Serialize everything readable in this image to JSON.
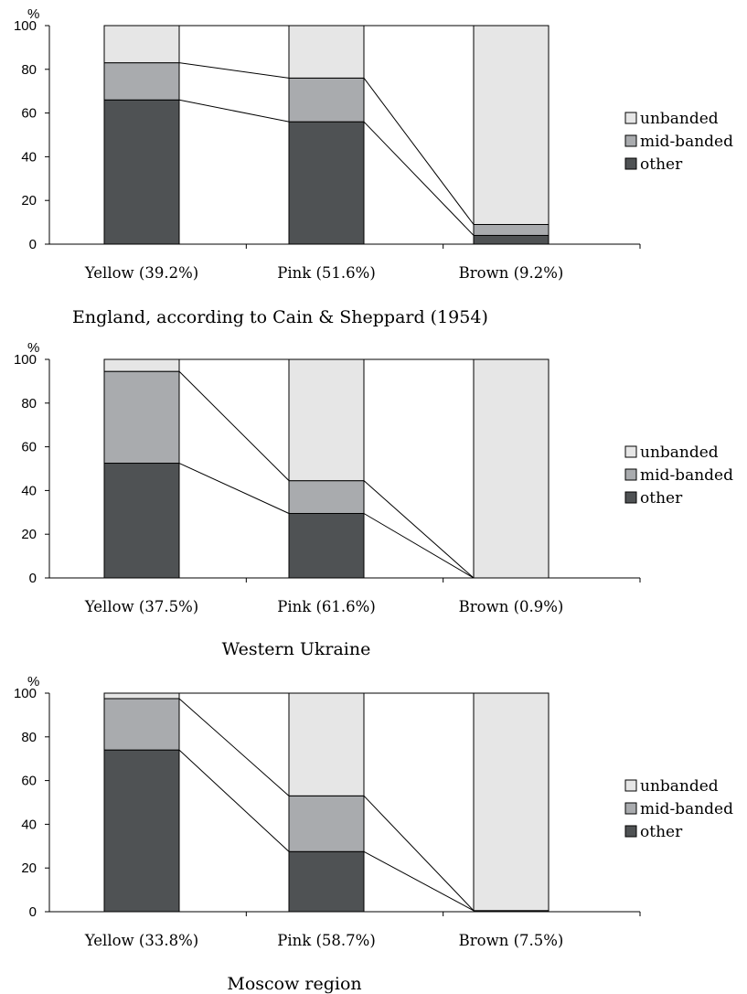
{
  "chart_data": [
    {
      "type": "bar",
      "stacked": true,
      "title": "England, according to Cain & Sheppard (1954)",
      "ylabel": "%",
      "ylim": [
        0,
        100
      ],
      "yticks": [
        "0",
        "20",
        "40",
        "60",
        "80",
        "100"
      ],
      "categories": [
        "Yellow (39.2%)",
        "Pink (51.6%)",
        "Brown (9.2%)"
      ],
      "series": [
        {
          "name": "other",
          "color": "#4f5254",
          "values": [
            66,
            56,
            4
          ]
        },
        {
          "name": "mid-banded",
          "color": "#a9abae",
          "values": [
            17,
            20,
            5
          ]
        },
        {
          "name": "unbanded",
          "color": "#e6e6e6",
          "values": [
            17,
            24,
            91
          ]
        }
      ],
      "connectors": true,
      "legend": "right",
      "grid": false
    },
    {
      "type": "bar",
      "stacked": true,
      "title": "Western Ukraine",
      "ylabel": "%",
      "ylim": [
        0,
        100
      ],
      "yticks": [
        "0",
        "20",
        "40",
        "60",
        "80",
        "100"
      ],
      "categories": [
        "Yellow (37.5%)",
        "Pink (61.6%)",
        "Brown (0.9%)"
      ],
      "series": [
        {
          "name": "other",
          "color": "#4f5254",
          "values": [
            52.5,
            29.5,
            0
          ]
        },
        {
          "name": "mid-banded",
          "color": "#a9abae",
          "values": [
            42,
            15,
            0
          ]
        },
        {
          "name": "unbanded",
          "color": "#e6e6e6",
          "values": [
            5.5,
            55.5,
            100
          ]
        }
      ],
      "connectors": true,
      "legend": "right",
      "grid": false
    },
    {
      "type": "bar",
      "stacked": true,
      "title": "Moscow region",
      "ylabel": "%",
      "ylim": [
        0,
        100
      ],
      "yticks": [
        "0",
        "20",
        "40",
        "60",
        "80",
        "100"
      ],
      "categories": [
        "Yellow (33.8%)",
        "Pink (58.7%)",
        "Brown (7.5%)"
      ],
      "series": [
        {
          "name": "other",
          "color": "#4f5254",
          "values": [
            74,
            27.5,
            0.5
          ]
        },
        {
          "name": "mid-banded",
          "color": "#a9abae",
          "values": [
            23.5,
            25.5,
            0
          ]
        },
        {
          "name": "unbanded",
          "color": "#e6e6e6",
          "values": [
            2.5,
            47,
            99.5
          ]
        }
      ],
      "connectors": true,
      "legend": "right",
      "grid": false
    }
  ]
}
